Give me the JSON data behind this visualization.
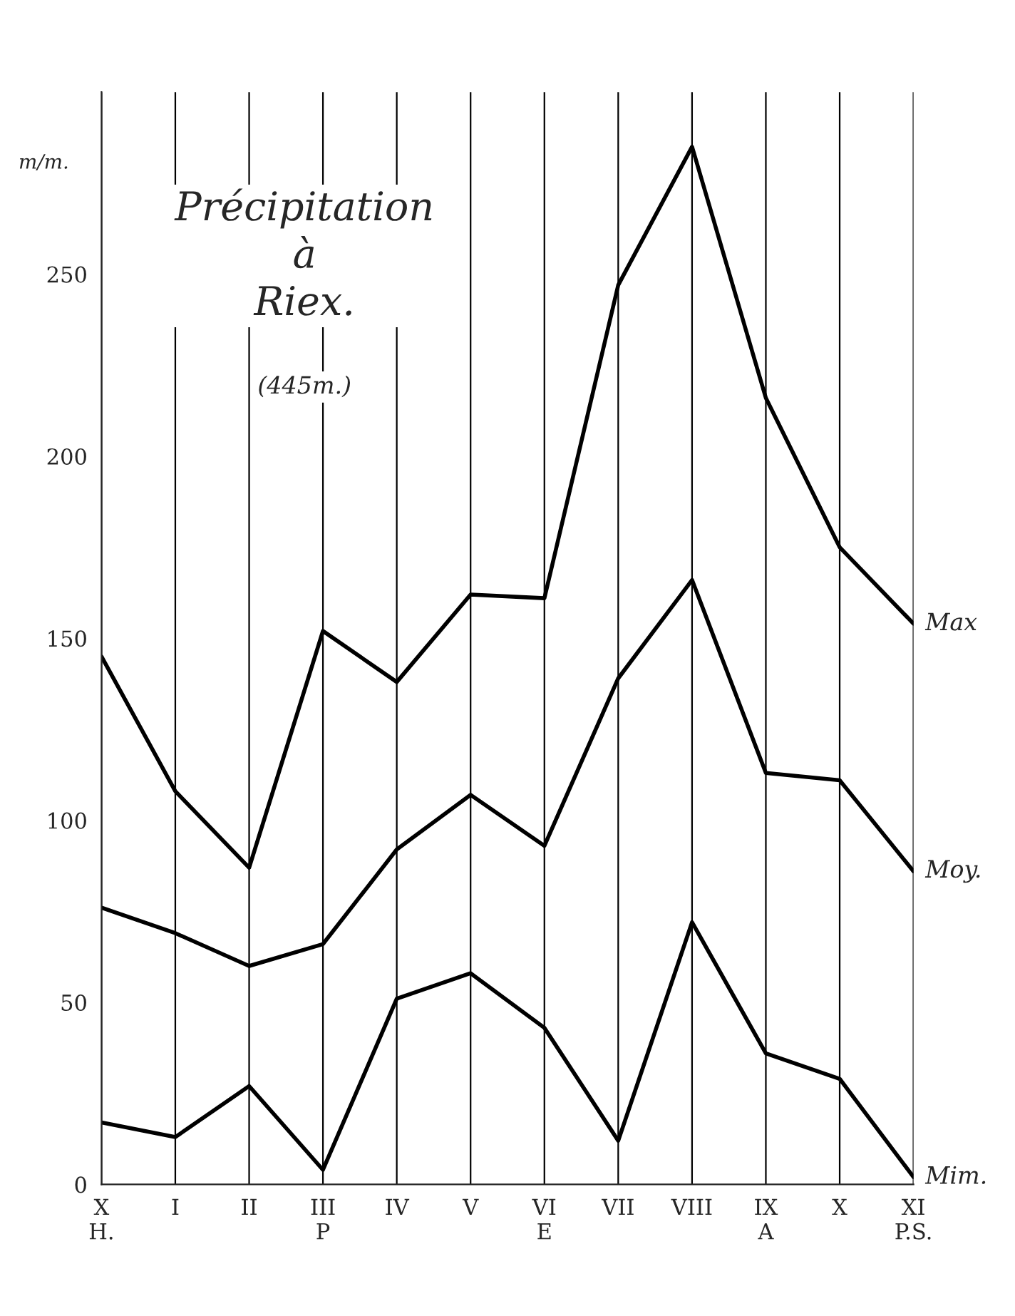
{
  "chart_data": {
    "type": "line",
    "title": "Précipitation\nà\nRiex.",
    "subtitle": "(445m.)",
    "ylabel": "m/m.",
    "categories": [
      "X\nH.",
      "I",
      "II",
      "III\nP",
      "IV",
      "V",
      "VI\nE",
      "VII",
      "VIII",
      "IX\nA",
      "X",
      "XI\nP.S."
    ],
    "series": [
      {
        "name": "Max",
        "color": "#000000",
        "values": [
          145,
          108,
          87,
          152,
          138,
          162,
          161,
          247,
          285,
          216,
          175,
          154
        ]
      },
      {
        "name": "Moy.",
        "color": "#000000",
        "values": [
          76,
          69,
          60,
          66,
          92,
          107,
          93,
          139,
          166,
          113,
          111,
          86
        ]
      },
      {
        "name": "Mim.",
        "color": "#000000",
        "values": [
          17,
          13,
          27,
          4,
          51,
          58,
          43,
          12,
          72,
          36,
          29,
          2
        ]
      }
    ],
    "ylim": [
      0,
      300
    ],
    "yticks": [
      0,
      50,
      100,
      150,
      200,
      250
    ],
    "grid": "x",
    "marker": "none",
    "line_style": "solid"
  }
}
